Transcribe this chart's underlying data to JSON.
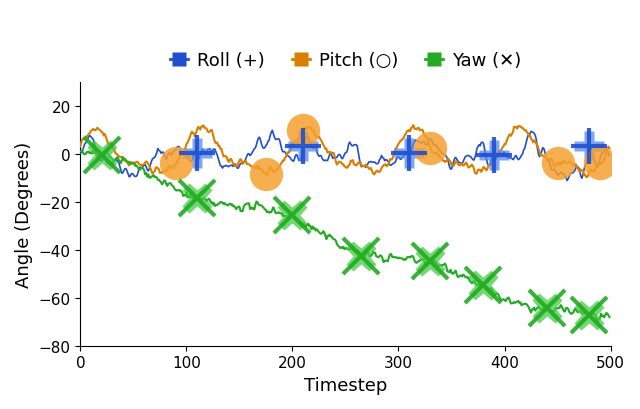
{
  "title": "",
  "xlabel": "Timestep",
  "ylabel": "Angle (Degrees)",
  "xlim": [
    0,
    500
  ],
  "ylim": [
    -80,
    30
  ],
  "yticks": [
    -80,
    -60,
    -40,
    -20,
    0,
    20
  ],
  "xticks": [
    0,
    100,
    200,
    300,
    400,
    500
  ],
  "roll_color": "#1f4fcf",
  "pitch_color": "#d97f00",
  "yaw_color": "#22aa22",
  "roll_marker_color": "#5588ee",
  "pitch_marker_color": "#f5a030",
  "yaw_marker_color": "#44cc44",
  "legend_labels": [
    "Roll (+)",
    "Pitch (○)",
    "Yaw (✕)"
  ],
  "roll_marker_positions": [
    110,
    210,
    310,
    390,
    480
  ],
  "pitch_marker_positions": [
    90,
    175,
    210,
    330,
    450,
    490
  ],
  "yaw_marker_positions": [
    20,
    110,
    200,
    265,
    330,
    380,
    440,
    480
  ],
  "n_steps": 500,
  "background_color": "#ffffff",
  "figure_facecolor": "#ffffff",
  "font_size": 13
}
